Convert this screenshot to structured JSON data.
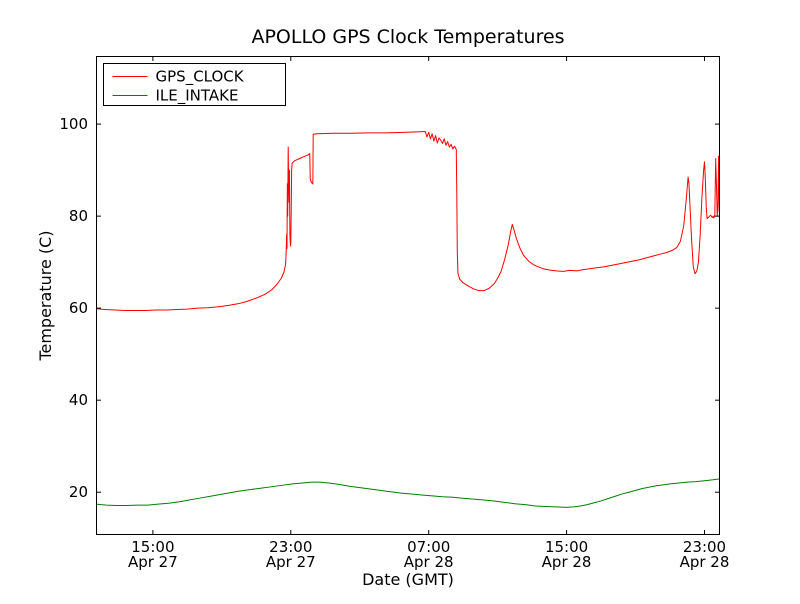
{
  "chart_data": {
    "type": "line",
    "title": "APOLLO GPS Clock Temperatures",
    "xlabel": "Date (GMT)",
    "ylabel": "Temperature (C)",
    "x_unit": "hours since Apr 27 00:00 GMT",
    "xlim": [
      11.7,
      47.9
    ],
    "ylim": [
      10.7,
      114.8
    ],
    "grid": false,
    "axes_color": "#000000",
    "background_color": "#ffffff",
    "xticks": [
      {
        "value": 15,
        "label": "15:00",
        "sublabel": "Apr 27"
      },
      {
        "value": 23,
        "label": "23:00",
        "sublabel": "Apr 27"
      },
      {
        "value": 31,
        "label": "07:00",
        "sublabel": "Apr 28"
      },
      {
        "value": 39,
        "label": "15:00",
        "sublabel": "Apr 28"
      },
      {
        "value": 47,
        "label": "23:00",
        "sublabel": "Apr 28"
      }
    ],
    "yticks": [
      20,
      40,
      60,
      80,
      100
    ],
    "legend": {
      "position": "upper left",
      "entries": [
        "GPS_CLOCK",
        "ILE_INTAKE"
      ]
    },
    "series": [
      {
        "name": "GPS_CLOCK",
        "color": "#ff0000",
        "points": [
          [
            11.7,
            59.9
          ],
          [
            12.2,
            59.7
          ],
          [
            12.8,
            59.6
          ],
          [
            13.4,
            59.5
          ],
          [
            14.0,
            59.5
          ],
          [
            14.6,
            59.5
          ],
          [
            15.2,
            59.6
          ],
          [
            15.8,
            59.6
          ],
          [
            16.4,
            59.7
          ],
          [
            17.0,
            59.8
          ],
          [
            17.6,
            60.0
          ],
          [
            18.2,
            60.1
          ],
          [
            18.8,
            60.3
          ],
          [
            19.4,
            60.6
          ],
          [
            20.0,
            61.0
          ],
          [
            20.5,
            61.5
          ],
          [
            21.0,
            62.2
          ],
          [
            21.5,
            63.0
          ],
          [
            21.9,
            64.0
          ],
          [
            22.2,
            65.2
          ],
          [
            22.45,
            66.5
          ],
          [
            22.6,
            67.8
          ],
          [
            22.7,
            69.5
          ],
          [
            22.73,
            72.0
          ],
          [
            22.76,
            76.0
          ],
          [
            22.78,
            73.0
          ],
          [
            22.8,
            87.0
          ],
          [
            22.82,
            80.0
          ],
          [
            22.85,
            95.0
          ],
          [
            22.87,
            88.0
          ],
          [
            22.9,
            83.0
          ],
          [
            22.92,
            90.0
          ],
          [
            22.95,
            76.0
          ],
          [
            22.98,
            73.5
          ],
          [
            23.0,
            74.0
          ],
          [
            23.02,
            80.0
          ],
          [
            23.05,
            90.0
          ],
          [
            23.08,
            91.5
          ],
          [
            23.2,
            92.0
          ],
          [
            23.5,
            92.5
          ],
          [
            23.8,
            93.0
          ],
          [
            24.0,
            93.3
          ],
          [
            24.1,
            93.6
          ],
          [
            24.13,
            88.0
          ],
          [
            24.2,
            87.3
          ],
          [
            24.28,
            87.0
          ],
          [
            24.3,
            97.8
          ],
          [
            24.5,
            97.9
          ],
          [
            25.5,
            98.0
          ],
          [
            26.5,
            98.0
          ],
          [
            27.5,
            98.1
          ],
          [
            28.5,
            98.1
          ],
          [
            29.5,
            98.2
          ],
          [
            30.3,
            98.3
          ],
          [
            30.8,
            98.4
          ],
          [
            30.9,
            97.2
          ],
          [
            31.0,
            98.2
          ],
          [
            31.1,
            96.8
          ],
          [
            31.2,
            97.9
          ],
          [
            31.3,
            96.3
          ],
          [
            31.4,
            97.5
          ],
          [
            31.5,
            95.9
          ],
          [
            31.6,
            97.0
          ],
          [
            31.7,
            96.5
          ],
          [
            31.8,
            95.8
          ],
          [
            31.9,
            96.8
          ],
          [
            32.0,
            95.4
          ],
          [
            32.1,
            96.2
          ],
          [
            32.2,
            95.0
          ],
          [
            32.3,
            95.6
          ],
          [
            32.4,
            94.6
          ],
          [
            32.5,
            95.2
          ],
          [
            32.55,
            94.8
          ],
          [
            32.6,
            94.5
          ],
          [
            32.63,
            85.0
          ],
          [
            32.66,
            72.0
          ],
          [
            32.7,
            67.5
          ],
          [
            32.8,
            66.3
          ],
          [
            33.0,
            65.5
          ],
          [
            33.3,
            64.8
          ],
          [
            33.6,
            64.2
          ],
          [
            33.9,
            63.8
          ],
          [
            34.2,
            63.8
          ],
          [
            34.5,
            64.3
          ],
          [
            34.8,
            65.3
          ],
          [
            35.0,
            66.5
          ],
          [
            35.2,
            68.0
          ],
          [
            35.4,
            70.5
          ],
          [
            35.6,
            73.5
          ],
          [
            35.75,
            76.5
          ],
          [
            35.85,
            78.2
          ],
          [
            35.95,
            77.0
          ],
          [
            36.1,
            75.0
          ],
          [
            36.3,
            73.0
          ],
          [
            36.5,
            71.5
          ],
          [
            36.8,
            70.2
          ],
          [
            37.1,
            69.4
          ],
          [
            37.4,
            68.9
          ],
          [
            37.7,
            68.5
          ],
          [
            38.0,
            68.3
          ],
          [
            38.4,
            68.1
          ],
          [
            38.8,
            68.0
          ],
          [
            39.2,
            68.2
          ],
          [
            39.6,
            68.1
          ],
          [
            40.0,
            68.4
          ],
          [
            40.4,
            68.6
          ],
          [
            40.8,
            68.8
          ],
          [
            41.2,
            69.0
          ],
          [
            41.6,
            69.3
          ],
          [
            42.0,
            69.6
          ],
          [
            42.4,
            69.9
          ],
          [
            42.8,
            70.2
          ],
          [
            43.2,
            70.5
          ],
          [
            43.6,
            70.9
          ],
          [
            44.0,
            71.3
          ],
          [
            44.4,
            71.7
          ],
          [
            44.8,
            72.1
          ],
          [
            45.1,
            72.5
          ],
          [
            45.4,
            73.2
          ],
          [
            45.6,
            74.5
          ],
          [
            45.8,
            78.0
          ],
          [
            45.95,
            84.0
          ],
          [
            46.05,
            88.5
          ],
          [
            46.1,
            87.0
          ],
          [
            46.15,
            83.0
          ],
          [
            46.25,
            75.0
          ],
          [
            46.35,
            69.0
          ],
          [
            46.45,
            67.5
          ],
          [
            46.55,
            68.0
          ],
          [
            46.65,
            70.0
          ],
          [
            46.75,
            76.0
          ],
          [
            46.85,
            84.0
          ],
          [
            46.95,
            90.0
          ],
          [
            47.0,
            91.8
          ],
          [
            47.05,
            88.0
          ],
          [
            47.1,
            82.0
          ],
          [
            47.15,
            79.5
          ],
          [
            47.25,
            79.8
          ],
          [
            47.35,
            80.2
          ],
          [
            47.45,
            79.7
          ],
          [
            47.5,
            80.0
          ],
          [
            47.55,
            79.6
          ],
          [
            47.6,
            80.3
          ],
          [
            47.65,
            92.5
          ],
          [
            47.7,
            86.0
          ],
          [
            47.74,
            80.0
          ],
          [
            47.78,
            82.0
          ],
          [
            47.82,
            93.0
          ],
          [
            47.86,
            81.0
          ],
          [
            47.9,
            80.0
          ]
        ]
      },
      {
        "name": "ILE_INTAKE",
        "color": "#008000",
        "points": [
          [
            11.7,
            17.4
          ],
          [
            12.3,
            17.2
          ],
          [
            12.9,
            17.1
          ],
          [
            13.5,
            17.1
          ],
          [
            14.1,
            17.2
          ],
          [
            14.7,
            17.2
          ],
          [
            15.3,
            17.4
          ],
          [
            15.9,
            17.6
          ],
          [
            16.5,
            17.9
          ],
          [
            17.1,
            18.3
          ],
          [
            17.7,
            18.7
          ],
          [
            18.3,
            19.1
          ],
          [
            18.9,
            19.5
          ],
          [
            19.5,
            19.9
          ],
          [
            20.1,
            20.3
          ],
          [
            20.7,
            20.6
          ],
          [
            21.3,
            20.9
          ],
          [
            21.9,
            21.2
          ],
          [
            22.5,
            21.5
          ],
          [
            23.1,
            21.8
          ],
          [
            23.7,
            22.0
          ],
          [
            24.2,
            22.2
          ],
          [
            24.7,
            22.2
          ],
          [
            25.2,
            22.0
          ],
          [
            25.8,
            21.7
          ],
          [
            26.4,
            21.3
          ],
          [
            27.0,
            21.0
          ],
          [
            27.6,
            20.7
          ],
          [
            28.2,
            20.4
          ],
          [
            28.8,
            20.1
          ],
          [
            29.4,
            19.8
          ],
          [
            30.0,
            19.6
          ],
          [
            30.6,
            19.4
          ],
          [
            31.2,
            19.2
          ],
          [
            31.8,
            19.0
          ],
          [
            32.4,
            18.9
          ],
          [
            33.0,
            18.7
          ],
          [
            33.6,
            18.5
          ],
          [
            34.2,
            18.3
          ],
          [
            34.8,
            18.1
          ],
          [
            35.4,
            17.8
          ],
          [
            36.0,
            17.5
          ],
          [
            36.6,
            17.3
          ],
          [
            37.2,
            17.0
          ],
          [
            37.8,
            16.9
          ],
          [
            38.4,
            16.8
          ],
          [
            39.0,
            16.7
          ],
          [
            39.4,
            16.8
          ],
          [
            39.8,
            17.0
          ],
          [
            40.2,
            17.3
          ],
          [
            40.6,
            17.7
          ],
          [
            41.0,
            18.1
          ],
          [
            41.4,
            18.6
          ],
          [
            41.8,
            19.1
          ],
          [
            42.2,
            19.6
          ],
          [
            42.6,
            20.0
          ],
          [
            43.0,
            20.4
          ],
          [
            43.4,
            20.8
          ],
          [
            43.8,
            21.1
          ],
          [
            44.2,
            21.4
          ],
          [
            44.6,
            21.6
          ],
          [
            45.0,
            21.8
          ],
          [
            45.5,
            22.0
          ],
          [
            46.0,
            22.2
          ],
          [
            46.5,
            22.3
          ],
          [
            47.0,
            22.5
          ],
          [
            47.5,
            22.7
          ],
          [
            47.9,
            22.9
          ]
        ]
      }
    ]
  }
}
